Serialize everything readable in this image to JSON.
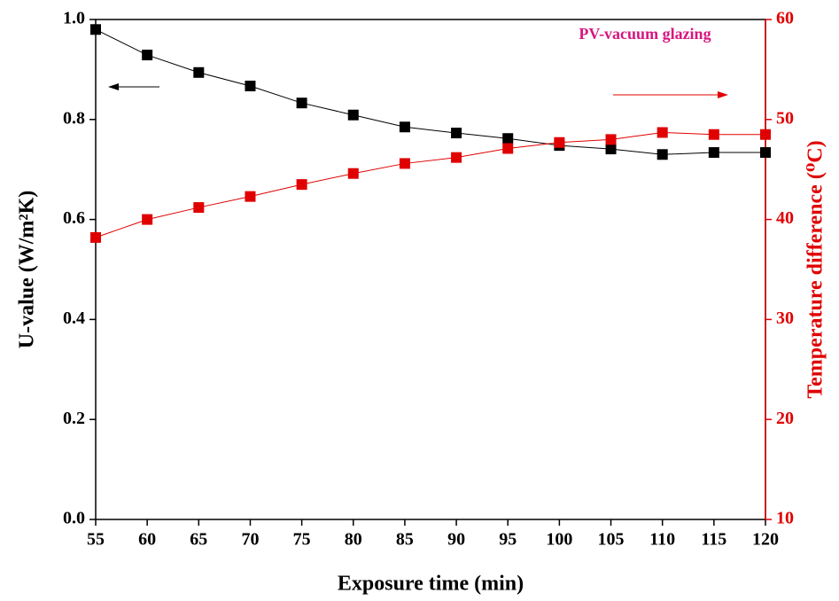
{
  "chart_data": {
    "type": "line",
    "annotation": "PV-vacuum glazing",
    "x_label": "Exposure time (min)",
    "y_label": "U-value (W/m²K)",
    "y2_label": "Temperature difference (⁰C)",
    "x": [
      55,
      60,
      65,
      70,
      75,
      80,
      85,
      90,
      95,
      100,
      105,
      110,
      115,
      120
    ],
    "series": [
      {
        "name": "U-value",
        "color": "#000000",
        "axis": "y",
        "values": [
          0.98,
          0.929,
          0.894,
          0.867,
          0.833,
          0.809,
          0.785,
          0.773,
          0.762,
          0.748,
          0.741,
          0.73,
          0.734,
          0.734
        ]
      },
      {
        "name": "Temperature difference",
        "color": "#e00000",
        "axis": "y2",
        "values": [
          38.2,
          40.0,
          41.2,
          42.3,
          43.5,
          44.6,
          45.6,
          46.2,
          47.1,
          47.7,
          48.0,
          48.7,
          48.5,
          48.5
        ]
      }
    ],
    "xlim": [
      55,
      120
    ],
    "xticks": [
      55,
      60,
      65,
      70,
      75,
      80,
      85,
      90,
      95,
      100,
      105,
      110,
      115,
      120
    ],
    "ylim": [
      0,
      1
    ],
    "yticks": [
      {
        "value": 0,
        "label": "0.0"
      },
      0.2,
      0.4,
      0.6,
      0.8,
      {
        "value": 1,
        "label": "1.0"
      }
    ],
    "y2lim": [
      10,
      60
    ],
    "y2ticks": [
      10,
      20,
      30,
      40,
      50,
      60
    ],
    "y2_color": "#e00000",
    "annotation_color": "#d6177f"
  }
}
